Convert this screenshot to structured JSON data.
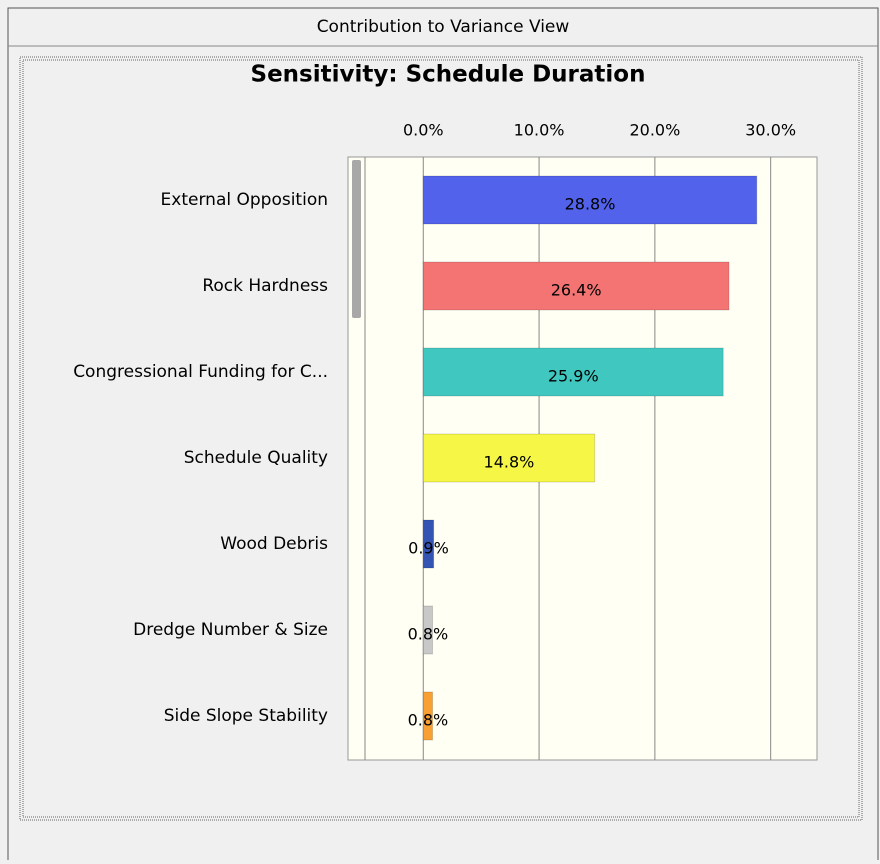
{
  "window_title": "Contribution to Variance View",
  "chart_data": {
    "type": "bar",
    "orientation": "horizontal",
    "title": "Sensitivity: Schedule Duration",
    "categories": [
      "External Opposition",
      "Rock Hardness",
      "Congressional Funding for C...",
      "Schedule Quality",
      "Wood Debris",
      "Dredge Number & Size",
      "Side Slope Stability"
    ],
    "values": [
      28.8,
      26.4,
      25.9,
      14.8,
      0.9,
      0.8,
      0.8
    ],
    "value_labels": [
      "28.8%",
      "26.4%",
      "25.9%",
      "14.8%",
      "0.9%",
      "0.8%",
      "0.8%"
    ],
    "colors": [
      "#5262ea",
      "#f47474",
      "#40c8c0",
      "#f6f646",
      "#3454b4",
      "#c8c8c8",
      "#f8a032"
    ],
    "xlim": [
      -6.5,
      34
    ],
    "xticks": [
      {
        "value": 0,
        "label": "0.0%"
      },
      {
        "value": 10,
        "label": "10.0%"
      },
      {
        "value": 20,
        "label": "20.0%"
      },
      {
        "value": 30,
        "label": "30.0%"
      }
    ],
    "grid": true
  }
}
